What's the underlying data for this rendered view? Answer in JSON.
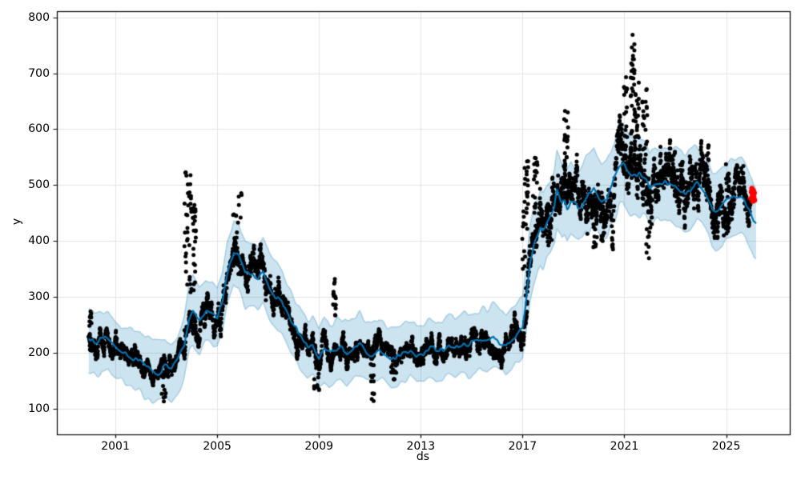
{
  "chart_data": {
    "type": "scatter",
    "description": "Prophet-style time-series forecast plot: black observed daily points, blue forecast line with light-blue uncertainty band, red highlighted most-recent points",
    "title": "",
    "xlabel": "ds",
    "ylabel": "y",
    "grid": true,
    "legend": false,
    "x_axis": {
      "range": [
        1998.7,
        2027.5
      ],
      "ticks": [
        2001,
        2005,
        2009,
        2013,
        2017,
        2021,
        2025
      ]
    },
    "y_axis": {
      "range": [
        54,
        811
      ],
      "ticks": [
        100,
        200,
        300,
        400,
        500,
        600,
        700,
        800
      ]
    },
    "colors": {
      "observed": "#000000",
      "forecast_line": "#0072B2",
      "band_fill": "rgba(0,114,178,0.2)",
      "band_edge": "rgba(0,114,178,0.28)",
      "recent_points": "#ff0000",
      "grid": "#e3e3e3",
      "spine": "#000000"
    },
    "forecast_line": {
      "width": 2.2,
      "jitter_amplitude": 3.5,
      "points": [
        [
          1999.95,
          227
        ],
        [
          2000.2,
          217
        ],
        [
          2000.45,
          224
        ],
        [
          2000.7,
          222
        ],
        [
          2000.95,
          211
        ],
        [
          2001.2,
          204
        ],
        [
          2001.45,
          197
        ],
        [
          2001.7,
          191
        ],
        [
          2001.95,
          187
        ],
        [
          2002.2,
          174
        ],
        [
          2002.45,
          163
        ],
        [
          2002.7,
          167
        ],
        [
          2002.95,
          175
        ],
        [
          2003.2,
          171
        ],
        [
          2003.45,
          185
        ],
        [
          2003.7,
          213
        ],
        [
          2003.9,
          262
        ],
        [
          2004.05,
          276
        ],
        [
          2004.3,
          259
        ],
        [
          2004.55,
          275
        ],
        [
          2004.8,
          272
        ],
        [
          2005.0,
          262
        ],
        [
          2005.2,
          292
        ],
        [
          2005.4,
          345
        ],
        [
          2005.65,
          383
        ],
        [
          2005.85,
          377
        ],
        [
          2006.1,
          343
        ],
        [
          2006.35,
          340
        ],
        [
          2006.6,
          333
        ],
        [
          2006.8,
          345
        ],
        [
          2007.05,
          316
        ],
        [
          2007.3,
          303
        ],
        [
          2007.55,
          290
        ],
        [
          2007.8,
          268
        ],
        [
          2008.05,
          246
        ],
        [
          2008.3,
          224
        ],
        [
          2008.55,
          207
        ],
        [
          2008.75,
          212
        ],
        [
          2009.0,
          192
        ],
        [
          2009.2,
          206
        ],
        [
          2009.4,
          196
        ],
        [
          2009.6,
          203
        ],
        [
          2009.85,
          211
        ],
        [
          2010.1,
          198
        ],
        [
          2010.35,
          206
        ],
        [
          2010.6,
          214
        ],
        [
          2010.85,
          200
        ],
        [
          2011.1,
          195
        ],
        [
          2011.35,
          204
        ],
        [
          2011.6,
          197
        ],
        [
          2011.85,
          186
        ],
        [
          2012.1,
          190
        ],
        [
          2012.35,
          200
        ],
        [
          2012.6,
          207
        ],
        [
          2012.85,
          196
        ],
        [
          2013.1,
          201
        ],
        [
          2013.35,
          209
        ],
        [
          2013.6,
          203
        ],
        [
          2013.85,
          209
        ],
        [
          2014.1,
          215
        ],
        [
          2014.35,
          208
        ],
        [
          2014.6,
          218
        ],
        [
          2014.85,
          212
        ],
        [
          2015.1,
          219
        ],
        [
          2015.35,
          226
        ],
        [
          2015.6,
          222
        ],
        [
          2015.85,
          228
        ],
        [
          2016.1,
          215
        ],
        [
          2016.35,
          211
        ],
        [
          2016.6,
          226
        ],
        [
          2016.85,
          239
        ],
        [
          2017.0,
          248
        ],
        [
          2017.15,
          300
        ],
        [
          2017.3,
          360
        ],
        [
          2017.45,
          392
        ],
        [
          2017.6,
          410
        ],
        [
          2017.7,
          423
        ],
        [
          2017.8,
          419
        ],
        [
          2017.95,
          433
        ],
        [
          2018.1,
          442
        ],
        [
          2018.25,
          459
        ],
        [
          2018.35,
          490
        ],
        [
          2018.55,
          469
        ],
        [
          2018.65,
          473
        ],
        [
          2018.75,
          461
        ],
        [
          2018.9,
          475
        ],
        [
          2019.05,
          468
        ],
        [
          2019.2,
          459
        ],
        [
          2019.35,
          466
        ],
        [
          2019.5,
          483
        ],
        [
          2019.65,
          487
        ],
        [
          2019.8,
          493
        ],
        [
          2019.95,
          482
        ],
        [
          2020.1,
          470
        ],
        [
          2020.3,
          474
        ],
        [
          2020.45,
          492
        ],
        [
          2020.6,
          509
        ],
        [
          2020.8,
          538
        ],
        [
          2020.95,
          540
        ],
        [
          2021.1,
          528
        ],
        [
          2021.25,
          518
        ],
        [
          2021.4,
          514
        ],
        [
          2021.55,
          519
        ],
        [
          2021.7,
          516
        ],
        [
          2021.85,
          512
        ],
        [
          2022.0,
          496
        ],
        [
          2022.2,
          503
        ],
        [
          2022.4,
          500
        ],
        [
          2022.6,
          506
        ],
        [
          2022.8,
          504
        ],
        [
          2023.0,
          495
        ],
        [
          2023.2,
          489
        ],
        [
          2023.4,
          486
        ],
        [
          2023.6,
          490
        ],
        [
          2023.85,
          501
        ],
        [
          2024.05,
          492
        ],
        [
          2024.3,
          476
        ],
        [
          2024.45,
          461
        ],
        [
          2024.6,
          455
        ],
        [
          2024.8,
          463
        ],
        [
          2025.0,
          472
        ],
        [
          2025.2,
          478
        ],
        [
          2025.4,
          481
        ],
        [
          2025.6,
          483
        ],
        [
          2025.75,
          472
        ],
        [
          2025.9,
          460
        ],
        [
          2026.0,
          446
        ],
        [
          2026.08,
          432
        ],
        [
          2026.18,
          428
        ]
      ]
    },
    "uncertainty_band": {
      "half_width_base": 42,
      "half_width_ratio": 0.05,
      "edge_wiggle_fast": 6,
      "edge_wiggle_slow": 7
    },
    "observed_points": {
      "t_start": 1999.95,
      "t_end": 2025.95,
      "points_per_year": 160,
      "marker_radius": 2.5,
      "noise_ar_phi": 0.93,
      "noise_innovation_ratio": 0.03,
      "micro_jitter_ratio": 0.015,
      "excursions": [
        {
          "t": 2000.02,
          "w": 0.04,
          "v": 281
        },
        {
          "t": 2002.9,
          "w": 0.1,
          "v": 112
        },
        {
          "t": 2003.85,
          "w": 0.14,
          "v": 540
        },
        {
          "t": 2004.1,
          "w": 0.06,
          "v": 470
        },
        {
          "t": 2005.8,
          "w": 0.18,
          "v": 486
        },
        {
          "t": 2008.9,
          "w": 0.12,
          "v": 133
        },
        {
          "t": 2009.6,
          "w": 0.06,
          "v": 333
        },
        {
          "t": 2011.1,
          "w": 0.07,
          "v": 113
        },
        {
          "t": 2011.95,
          "w": 0.12,
          "v": 150
        },
        {
          "t": 2017.1,
          "w": 0.12,
          "v": 545
        },
        {
          "t": 2017.5,
          "w": 0.1,
          "v": 553
        },
        {
          "t": 2018.05,
          "w": 0.1,
          "v": 390
        },
        {
          "t": 2018.7,
          "w": 0.1,
          "v": 638
        },
        {
          "t": 2019.85,
          "w": 0.08,
          "v": 388
        },
        {
          "t": 2020.15,
          "w": 0.07,
          "v": 395
        },
        {
          "t": 2021.05,
          "w": 0.07,
          "v": 694
        },
        {
          "t": 2021.33,
          "w": 0.1,
          "v": 777
        },
        {
          "t": 2021.5,
          "w": 0.07,
          "v": 700
        },
        {
          "t": 2021.8,
          "w": 0.1,
          "v": 672
        },
        {
          "t": 2021.95,
          "w": 0.09,
          "v": 367
        },
        {
          "t": 2022.95,
          "w": 0.05,
          "v": 575
        },
        {
          "t": 2023.25,
          "w": 0.06,
          "v": 542
        },
        {
          "t": 2024.28,
          "w": 0.05,
          "v": 573
        },
        {
          "t": 2024.6,
          "w": 0.1,
          "v": 400
        },
        {
          "t": 2025.05,
          "w": 0.06,
          "v": 538
        }
      ]
    },
    "recent_highlight_points": {
      "marker_radius": 3.2,
      "points": [
        [
          2025.97,
          476
        ],
        [
          2025.99,
          488
        ],
        [
          2026.01,
          494
        ],
        [
          2026.03,
          482
        ],
        [
          2026.05,
          471
        ],
        [
          2026.07,
          490
        ],
        [
          2026.09,
          479
        ],
        [
          2026.11,
          486
        ],
        [
          2026.12,
          473
        ]
      ]
    }
  }
}
